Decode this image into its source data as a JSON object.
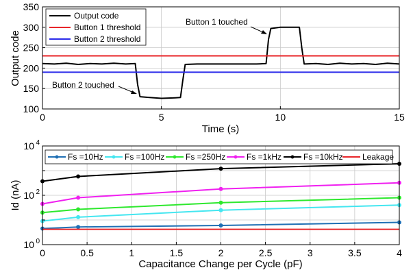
{
  "chart_data": [
    {
      "type": "line",
      "xlabel": "Time (s)",
      "ylabel": "Output code",
      "xlim": [
        0,
        15
      ],
      "ylim": [
        100,
        350
      ],
      "xticks": [
        0,
        5,
        10,
        15
      ],
      "yticks": [
        100,
        150,
        200,
        250,
        300,
        350
      ],
      "grid": true,
      "legend_placement": "top-left",
      "series": [
        {
          "name": "Output code",
          "color": "#000000",
          "x": [
            0,
            0.5,
            1.0,
            1.5,
            2.0,
            2.5,
            3.0,
            3.5,
            3.9,
            4.0,
            4.1,
            4.5,
            5.0,
            5.5,
            5.8,
            5.9,
            6.0,
            6.5,
            7.0,
            7.5,
            8.0,
            8.5,
            9.0,
            9.4,
            9.5,
            9.6,
            10.0,
            10.5,
            10.8,
            10.9,
            11.0,
            11.5,
            12.0,
            12.5,
            13.0,
            13.5,
            14.0,
            14.5,
            15.0
          ],
          "y": [
            211,
            210,
            212,
            209,
            211,
            210,
            212,
            210,
            211,
            160,
            130,
            128,
            126,
            127,
            128,
            170,
            209,
            210,
            210,
            210,
            210,
            210,
            210,
            211,
            270,
            297,
            300,
            300,
            300,
            250,
            210,
            211,
            209,
            212,
            210,
            211,
            209,
            212,
            210
          ]
        },
        {
          "name": "Button 1 threshold",
          "color": "#e8262a",
          "x": [
            0,
            15
          ],
          "y": [
            230,
            230
          ]
        },
        {
          "name": "Button 2 threshold",
          "color": "#2b2bea",
          "x": [
            0,
            15
          ],
          "y": [
            190,
            190
          ]
        }
      ],
      "annotations": [
        {
          "text": "Button 1 touched",
          "x": 9.5,
          "y": 290
        },
        {
          "text": "Button 2 touched",
          "x": 4.05,
          "y": 131
        }
      ]
    },
    {
      "type": "line",
      "xlabel": "Capacitance Change per Cycle (pF)",
      "ylabel": "Id (nA)",
      "xlim": [
        0,
        4
      ],
      "ylim": [
        1,
        10000
      ],
      "yscale": "log",
      "xticks": [
        "0",
        "0.5",
        "1",
        "1.5",
        "2",
        "2.5",
        "3",
        "3.5",
        "4"
      ],
      "yticks": [
        {
          "value": 1,
          "base": "10",
          "exp": "0"
        },
        {
          "value": 100,
          "base": "10",
          "exp": "2"
        },
        {
          "value": 10000,
          "base": "10",
          "exp": "4"
        }
      ],
      "grid": true,
      "legend_placement": "top",
      "series": [
        {
          "name": "Fs =10Hz",
          "color": "#1f6fb4",
          "x": [
            0,
            0.4,
            2,
            4
          ],
          "y": [
            4.5,
            5.2,
            6.0,
            8.0
          ]
        },
        {
          "name": "Fs =100Hz",
          "color": "#44e6f0",
          "x": [
            0,
            0.4,
            2,
            4
          ],
          "y": [
            9.0,
            13,
            25,
            40
          ]
        },
        {
          "name": "Fs =250Hz",
          "color": "#2ee82e",
          "x": [
            0,
            0.4,
            2,
            4
          ],
          "y": [
            20,
            27,
            50,
            80
          ]
        },
        {
          "name": "Fs =1kHz",
          "color": "#f020f0",
          "x": [
            0,
            0.4,
            2,
            4
          ],
          "y": [
            45,
            80,
            180,
            320
          ]
        },
        {
          "name": "Fs =10kHz",
          "color": "#000000",
          "x": [
            0,
            0.4,
            2,
            4
          ],
          "y": [
            370,
            580,
            1200,
            1900
          ]
        },
        {
          "name": "Leakage",
          "color": "#e8262a",
          "x": [
            0,
            4
          ],
          "y": [
            4.2,
            4.2
          ]
        }
      ]
    }
  ]
}
